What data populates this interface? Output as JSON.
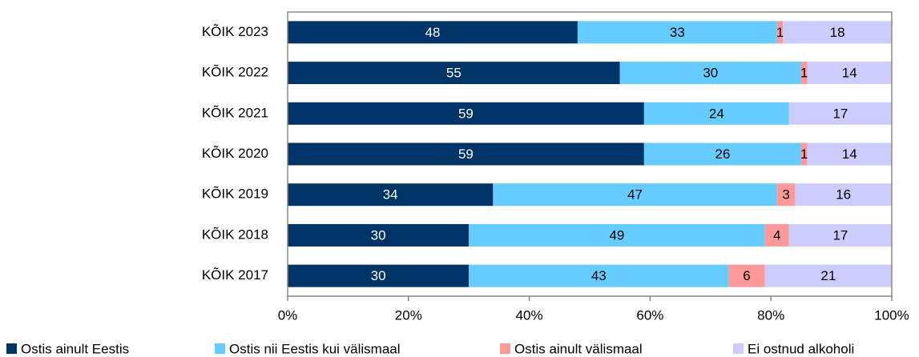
{
  "chart_data": {
    "type": "stacked-barh",
    "categories": [
      "KÕIK 2023",
      "KÕIK 2022",
      "KÕIK 2021",
      "KÕIK 2020",
      "KÕIK 2019",
      "KÕIK 2018",
      "KÕIK 2017"
    ],
    "series": [
      {
        "name": "Ostis ainult Eestis",
        "color": "#003366",
        "values": [
          48,
          55,
          59,
          59,
          34,
          30,
          30
        ]
      },
      {
        "name": "Ostis nii Eestis kui välismaal",
        "color": "#66ccff",
        "values": [
          33,
          30,
          24,
          26,
          47,
          49,
          43
        ]
      },
      {
        "name": "Ostis ainult välismaal",
        "color": "#ff9999",
        "values": [
          1,
          1,
          null,
          1,
          3,
          4,
          6
        ]
      },
      {
        "name": "Ei ostnud alkoholi",
        "color": "#ccccff",
        "values": [
          18,
          14,
          17,
          14,
          16,
          17,
          21
        ]
      }
    ],
    "xlim": [
      0,
      100
    ],
    "xticks": [
      {
        "value": 0,
        "label": "0%"
      },
      {
        "value": 20,
        "label": "20%"
      },
      {
        "value": 40,
        "label": "40%"
      },
      {
        "value": 60,
        "label": "60%"
      },
      {
        "value": 80,
        "label": "80%"
      },
      {
        "value": 100,
        "label": "100%"
      }
    ],
    "legend": "bottom"
  }
}
